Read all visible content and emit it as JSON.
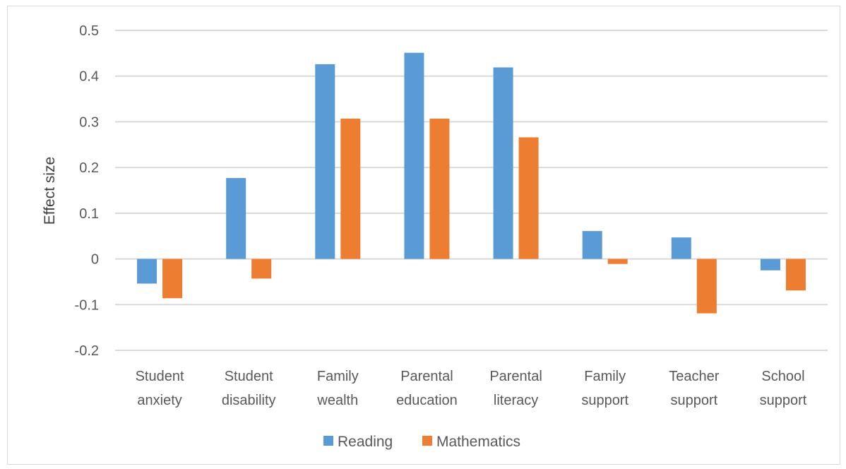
{
  "chart_data": {
    "type": "bar",
    "title": "",
    "xlabel": "",
    "ylabel": "Effect size",
    "ylim": [
      -0.2,
      0.5
    ],
    "yticks": [
      0.5,
      0.4,
      0.3,
      0.2,
      0.1,
      0,
      -0.1,
      -0.2
    ],
    "ytick_labels": [
      "0.5",
      "0.4",
      "0.3",
      "0.2",
      "0.1",
      "0",
      "-0.1",
      "-0.2"
    ],
    "grid": true,
    "legend_position": "bottom",
    "categories": [
      [
        "Student",
        "anxiety"
      ],
      [
        "Student",
        "disability"
      ],
      [
        "Family",
        "wealth"
      ],
      [
        "Parental",
        "education"
      ],
      [
        "Parental",
        "literacy"
      ],
      [
        "Family",
        "support"
      ],
      [
        "Teacher",
        "support"
      ],
      [
        "School",
        "support"
      ]
    ],
    "series": [
      {
        "name": "Reading",
        "color": "#5b9bd5",
        "values": [
          -0.054,
          0.177,
          0.426,
          0.451,
          0.419,
          0.061,
          0.047,
          -0.025
        ]
      },
      {
        "name": "Mathematics",
        "color": "#ed7d31",
        "values": [
          -0.086,
          -0.043,
          0.307,
          0.307,
          0.266,
          -0.011,
          -0.119,
          -0.069
        ]
      }
    ]
  }
}
